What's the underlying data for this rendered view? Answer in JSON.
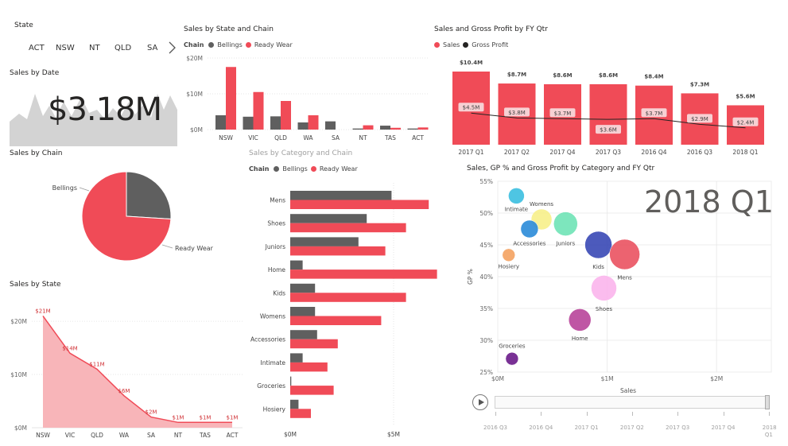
{
  "colors": {
    "bellings": "#5f5f5f",
    "readywear": "#f04b57",
    "area_fill": "#f8b5b9",
    "gray_area": "#d3d3d3"
  },
  "state_slicer": {
    "title": "State",
    "items": [
      "ACT",
      "NSW",
      "NT",
      "QLD",
      "SA"
    ],
    "next_icon": "chevron-right-icon"
  },
  "sales_by_date": {
    "title": "Sales by Date",
    "value": "$3.18M"
  },
  "sales_by_chain": {
    "title": "Sales by Chain",
    "chart_data": {
      "type": "pie",
      "labels": [
        "Bellings",
        "Ready Wear"
      ],
      "values": [
        26,
        74
      ]
    }
  },
  "sales_by_state": {
    "title": "Sales by State",
    "chart_data": {
      "type": "area",
      "categories": [
        "NSW",
        "VIC",
        "QLD",
        "WA",
        "SA",
        "NT",
        "TAS",
        "ACT"
      ],
      "values": [
        21,
        14,
        11,
        6,
        2,
        1,
        1,
        1
      ],
      "data_labels": [
        "$21M",
        "$14M",
        "$11M",
        "$6M",
        "$2M",
        "$1M",
        "$1M",
        "$1M"
      ],
      "yticks": [
        "$0M",
        "$10M",
        "$20M"
      ],
      "ylim": [
        0,
        23
      ]
    }
  },
  "sales_by_state_chain": {
    "title": "Sales by State and Chain",
    "legend_label": "Chain",
    "series_names": [
      "Bellings",
      "Ready Wear"
    ],
    "chart_data": {
      "type": "bar",
      "categories": [
        "NSW",
        "VIC",
        "QLD",
        "WA",
        "SA",
        "NT",
        "TAS",
        "ACT"
      ],
      "series": [
        {
          "name": "Bellings",
          "values": [
            4.0,
            3.6,
            3.7,
            2.0,
            2.3,
            0.3,
            1.1,
            0.3
          ]
        },
        {
          "name": "Ready Wear",
          "values": [
            17.5,
            10.5,
            8.0,
            4.0,
            0,
            1.2,
            0.5,
            0.6
          ]
        }
      ],
      "yticks": [
        "$0M",
        "$10M",
        "$20M"
      ],
      "ylim": [
        0,
        20
      ]
    }
  },
  "sales_gp_fyqtr": {
    "title": "Sales and Gross Profit by FY Qtr",
    "series_names": [
      "Sales",
      "Gross Profit"
    ],
    "chart_data": {
      "type": "bar",
      "categories": [
        "2017 Q1",
        "2017 Q2",
        "2017 Q4",
        "2017 Q3",
        "2016 Q4",
        "2016 Q3",
        "2018 Q1"
      ],
      "series": [
        {
          "name": "Sales",
          "values": [
            10.4,
            8.7,
            8.6,
            8.6,
            8.4,
            7.3,
            5.6
          ],
          "labels": [
            "$10.4M",
            "$8.7M",
            "$8.6M",
            "$8.6M",
            "$8.4M",
            "$7.3M",
            "$5.6M"
          ]
        },
        {
          "name": "Gross Profit",
          "values": [
            4.5,
            3.8,
            3.7,
            3.6,
            3.7,
            2.9,
            2.4
          ],
          "labels": [
            "$4.5M",
            "$3.8M",
            "$3.7M",
            "$3.6M",
            "$3.7M",
            "$2.9M",
            "$2.4M"
          ]
        }
      ],
      "ylim": [
        0,
        11
      ]
    }
  },
  "sales_by_category": {
    "title": "Sales by Category and Chain",
    "legend_label": "Chain",
    "series_names": [
      "Bellings",
      "Ready Wear"
    ],
    "chart_data": {
      "type": "bar",
      "orientation": "horizontal",
      "categories": [
        "Mens",
        "Shoes",
        "Juniors",
        "Home",
        "Kids",
        "Womens",
        "Accessories",
        "Intimate",
        "Groceries",
        "Hosiery"
      ],
      "series": [
        {
          "name": "Bellings",
          "values": [
            4.9,
            3.7,
            3.3,
            0.6,
            1.2,
            1.2,
            1.3,
            0.6,
            0.05,
            0.4
          ]
        },
        {
          "name": "Ready Wear",
          "values": [
            6.7,
            5.6,
            4.6,
            7.1,
            5.6,
            4.4,
            2.3,
            1.8,
            2.1,
            1.0
          ]
        }
      ],
      "xticks": [
        "$0M",
        "$5M"
      ],
      "xlim": [
        0,
        7.2
      ]
    }
  },
  "scatter": {
    "title": "Sales, GP % and Gross Profit by Category and FY Qtr",
    "current_period": "2018 Q1",
    "chart_data": {
      "type": "scatter",
      "xlabel": "Sales",
      "ylabel": "GP %",
      "xticks": [
        "$0M",
        "$1M",
        "$2M"
      ],
      "xlim": [
        0,
        2.5
      ],
      "yticks": [
        "25%",
        "30%",
        "35%",
        "40%",
        "45%",
        "50%",
        "55%"
      ],
      "ylim": [
        25,
        55
      ],
      "points": [
        {
          "name": "Intimate",
          "x": 0.17,
          "y": 52.7,
          "size": 10,
          "color": "#3bbfe0"
        },
        {
          "name": "Womens",
          "x": 0.4,
          "y": 49.0,
          "size": 13,
          "color": "#f7ef8a"
        },
        {
          "name": "Accessories",
          "x": 0.29,
          "y": 47.5,
          "size": 11,
          "color": "#2a8bd8"
        },
        {
          "name": "Juniors",
          "x": 0.62,
          "y": 48.3,
          "size": 15,
          "color": "#6fe3b6"
        },
        {
          "name": "Hosiery",
          "x": 0.1,
          "y": 43.4,
          "size": 8,
          "color": "#f4a261"
        },
        {
          "name": "Kids",
          "x": 0.92,
          "y": 45.0,
          "size": 17,
          "color": "#3848b5"
        },
        {
          "name": "Mens",
          "x": 1.16,
          "y": 43.5,
          "size": 19,
          "color": "#ea5260"
        },
        {
          "name": "Shoes",
          "x": 0.97,
          "y": 38.2,
          "size": 16,
          "color": "#fbb5ec"
        },
        {
          "name": "Home",
          "x": 0.75,
          "y": 33.2,
          "size": 14,
          "color": "#b8449a"
        },
        {
          "name": "Groceries",
          "x": 0.13,
          "y": 27.1,
          "size": 8,
          "color": "#6a1b8a"
        }
      ]
    },
    "play_axis": {
      "labels": [
        "2016 Q3",
        "2016 Q4",
        "2017 Q1",
        "2017 Q2",
        "2017 Q3",
        "2017 Q4",
        "2018 Q1"
      ]
    }
  }
}
